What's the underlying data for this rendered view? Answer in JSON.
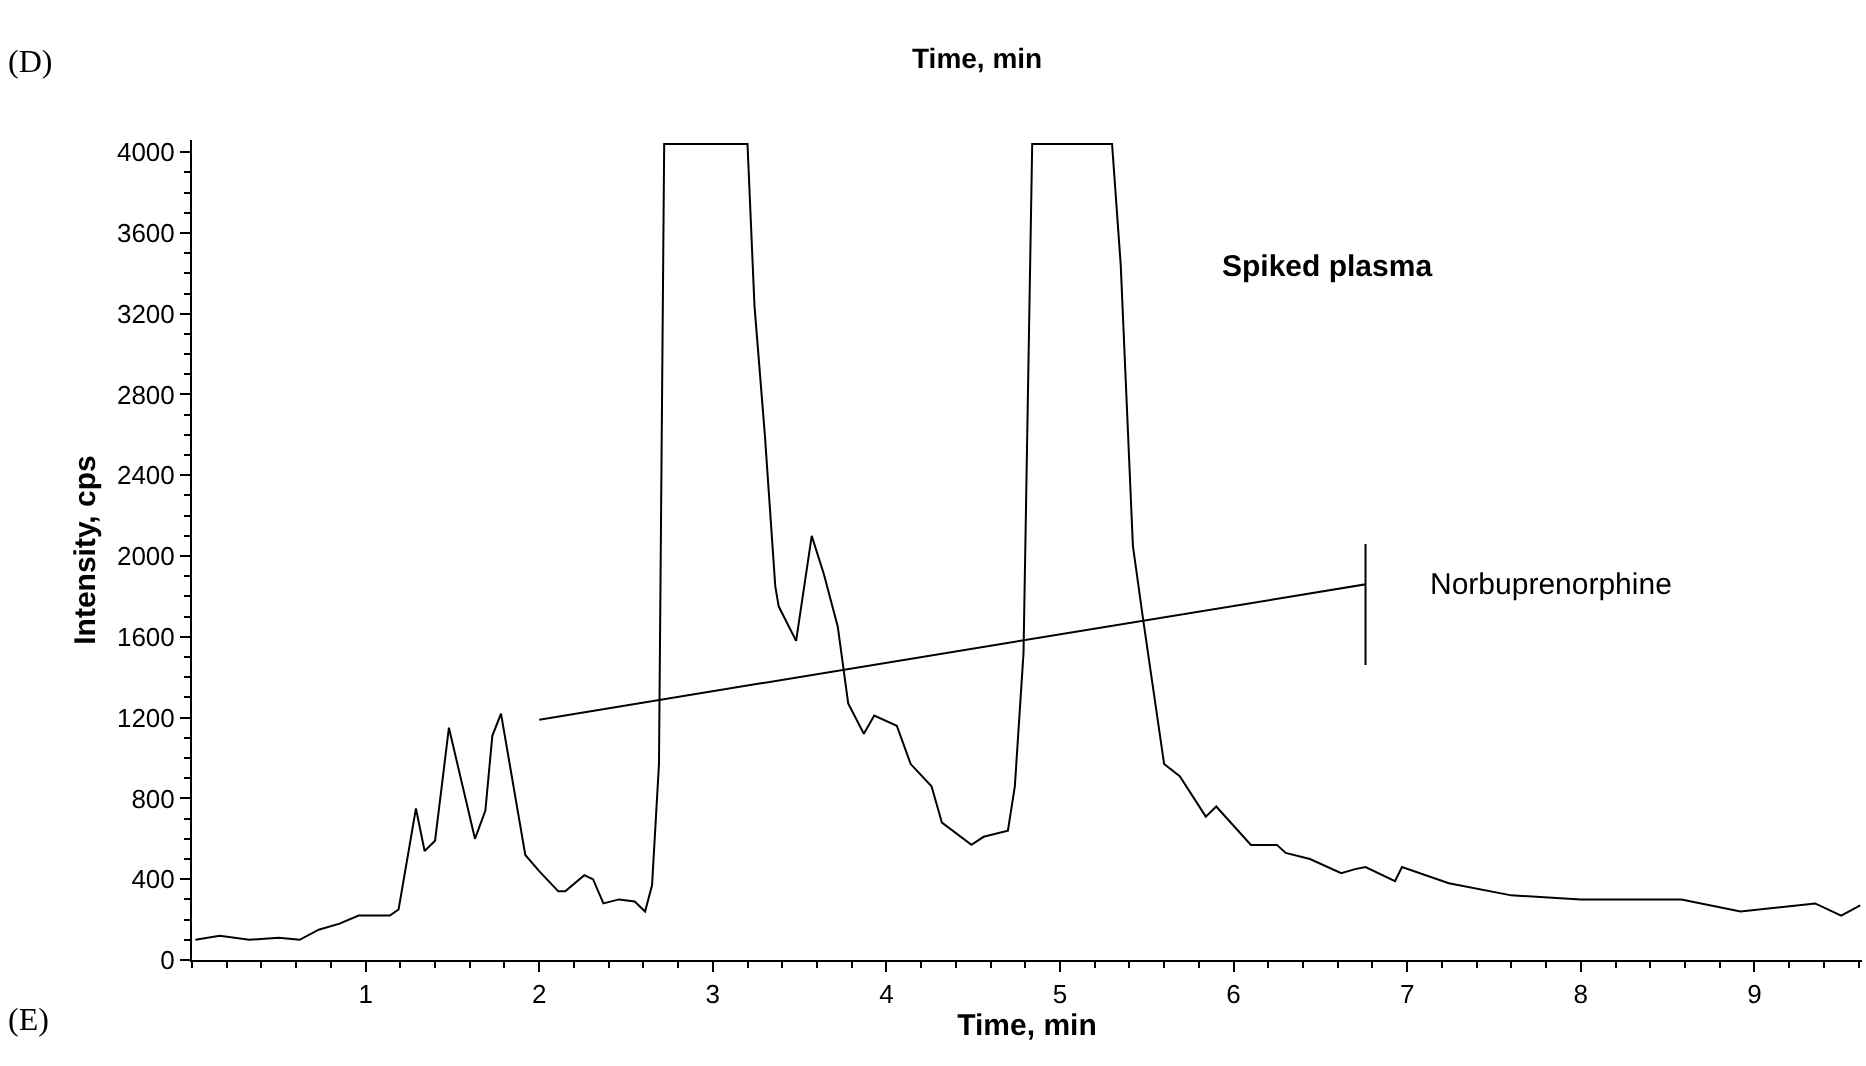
{
  "chart_data": {
    "type": "line",
    "xlabel": "Time, min",
    "ylabel": "Intensity, cps",
    "annotations": [
      "(D)",
      "Time, min",
      "(E)",
      "Spiked plasma",
      {
        "text": "Norbuprenorphine",
        "x": 6.76,
        "y": 1860
      }
    ],
    "xlim": [
      0,
      9.62
    ],
    "xticks": [
      1,
      2,
      3,
      4,
      5,
      6,
      7,
      8,
      9
    ],
    "ylim": [
      0,
      4060
    ],
    "yticks": [
      0,
      400,
      800,
      1200,
      1600,
      2000,
      2400,
      2800,
      3200,
      3600,
      4000
    ],
    "marker": "none",
    "line_style": "solid",
    "series": [
      {
        "color": "#000000",
        "x": [
          0.02,
          0.16,
          0.33,
          0.5,
          0.62,
          0.73,
          0.85,
          0.96,
          1.14,
          1.19,
          1.29,
          1.34,
          1.4,
          1.48,
          1.63,
          1.69,
          1.73,
          1.78,
          1.92,
          2.0,
          2.11,
          2.15,
          2.26,
          2.31,
          2.37,
          2.46,
          2.55,
          2.61,
          2.65,
          2.69,
          2.72,
          3.2,
          3.24,
          3.3,
          3.36,
          3.38,
          3.48,
          3.57,
          3.64,
          3.72,
          3.78,
          3.87,
          3.93,
          4.06,
          4.14,
          4.26,
          4.32,
          4.49,
          4.56,
          4.7,
          4.74,
          4.79,
          4.84,
          5.3,
          5.35,
          5.42,
          5.48,
          5.6,
          5.69,
          5.84,
          5.9,
          6.1,
          6.25,
          6.3,
          6.44,
          6.62,
          6.7,
          6.76,
          6.93,
          6.97,
          7.24,
          7.6,
          8.0,
          8.58,
          8.92,
          9.35,
          9.5,
          9.61
        ],
        "values": [
          100,
          120,
          100,
          110,
          100,
          150,
          180,
          220,
          220,
          250,
          750,
          540,
          590,
          1150,
          600,
          740,
          1110,
          1220,
          520,
          440,
          340,
          340,
          420,
          400,
          280,
          300,
          290,
          240,
          370,
          970,
          4040,
          4040,
          3240,
          2600,
          1850,
          1750,
          1580,
          2100,
          1910,
          1650,
          1270,
          1120,
          1210,
          1160,
          970,
          860,
          680,
          570,
          610,
          640,
          860,
          1520,
          4040,
          4040,
          3440,
          2050,
          1680,
          970,
          910,
          710,
          760,
          570,
          570,
          530,
          500,
          430,
          450,
          460,
          390,
          460,
          380,
          320,
          300,
          300,
          240,
          280,
          220,
          270
        ]
      },
      {
        "color": "#000000",
        "x": [
          2.0,
          6.76,
          6.76,
          6.76
        ],
        "values": [
          1190,
          1860,
          2060,
          1460
        ]
      }
    ]
  }
}
